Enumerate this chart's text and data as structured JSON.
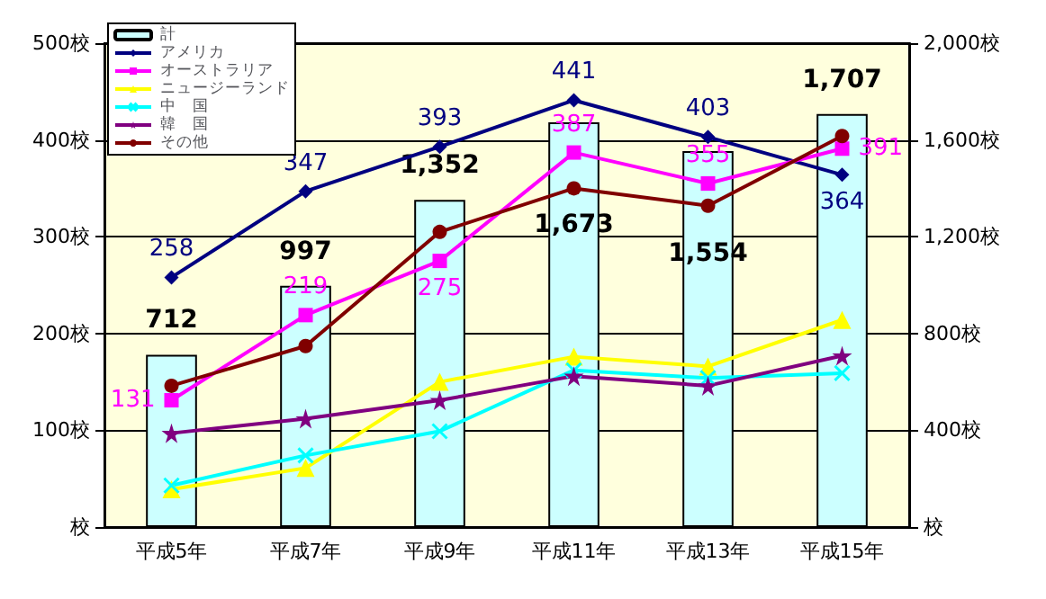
{
  "chart_data": {
    "type": "line",
    "categories": [
      "平成5年",
      "平成7年",
      "平成9年",
      "平成11年",
      "平成13年",
      "平成15年"
    ],
    "series": [
      {
        "name": "計",
        "type": "bar",
        "axis": "y2",
        "color": "#ccffff",
        "values": [
          712,
          997,
          1352,
          1673,
          1554,
          1707
        ],
        "value_labels": [
          "712",
          "997",
          "1,352",
          "1,673",
          "1,554",
          "1,707"
        ]
      },
      {
        "name": "アメリカ",
        "color": "#000080",
        "marker": "diamond",
        "values": [
          258,
          347,
          393,
          441,
          403,
          364
        ],
        "value_labels": [
          "258",
          "347",
          "393",
          "441",
          "403",
          "364"
        ]
      },
      {
        "name": "オーストラリア",
        "color": "#ff00ff",
        "marker": "square",
        "values": [
          131,
          219,
          275,
          387,
          355,
          391
        ],
        "value_labels": [
          "131",
          "219",
          "275",
          "387",
          "355",
          "391"
        ]
      },
      {
        "name": "ニュージーランド",
        "color": "#ffff00",
        "marker": "triangle",
        "values": [
          39,
          61,
          150,
          176,
          166,
          214
        ]
      },
      {
        "name": "中　国",
        "color": "#00ffff",
        "marker": "cross",
        "values": [
          43,
          74,
          99,
          162,
          154,
          159
        ]
      },
      {
        "name": "韓　国",
        "color": "#800080",
        "marker": "star",
        "values": [
          97,
          112,
          131,
          156,
          146,
          177
        ]
      },
      {
        "name": "その他",
        "color": "#800000",
        "marker": "circle",
        "values": [
          146,
          187,
          305,
          350,
          332,
          404
        ]
      }
    ],
    "ylim": [
      0,
      500
    ],
    "yticks": [
      {
        "value": 0,
        "label": "校"
      },
      {
        "value": 100,
        "label": "100校"
      },
      {
        "value": 200,
        "label": "200校"
      },
      {
        "value": 300,
        "label": "300校"
      },
      {
        "value": 400,
        "label": "400校"
      },
      {
        "value": 500,
        "label": "500校"
      }
    ],
    "y2lim": [
      0,
      2000
    ],
    "y2ticks": [
      {
        "value": 0,
        "label": "校"
      },
      {
        "value": 400,
        "label": "400校"
      },
      {
        "value": 800,
        "label": "800校"
      },
      {
        "value": 1200,
        "label": "1,200校"
      },
      {
        "value": 1600,
        "label": "1,600校"
      },
      {
        "value": 2000,
        "label": "2,000校"
      }
    ],
    "grid": "y",
    "legend": "top left"
  }
}
